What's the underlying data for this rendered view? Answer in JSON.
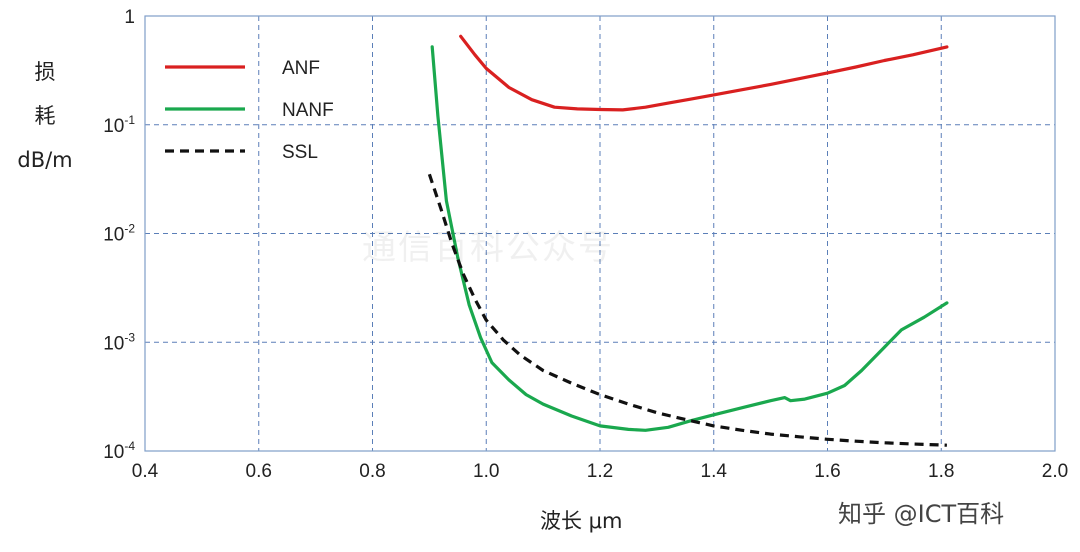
{
  "chart_data": {
    "type": "line",
    "xlabel": "波长 μm",
    "ylabel_lines": [
      "损",
      "耗",
      "dB/m"
    ],
    "xlim": [
      0.4,
      2.0
    ],
    "ylim": [
      0.0001,
      1
    ],
    "yscale": "log",
    "grid": true,
    "legend_position": "top-left",
    "x_ticks": [
      0.4,
      0.6,
      0.8,
      1.0,
      1.2,
      1.4,
      1.6,
      1.8,
      2.0
    ],
    "x_tick_labels": [
      "0.4",
      "0.6",
      "0.8",
      "1.0",
      "1.2",
      "1.4",
      "1.6",
      "1.8",
      "2.0"
    ],
    "y_ticks": [
      {
        "value": 1,
        "base": "1",
        "exp": ""
      },
      {
        "value": 0.1,
        "base": "10",
        "exp": "-1"
      },
      {
        "value": 0.01,
        "base": "10",
        "exp": "-2"
      },
      {
        "value": 0.001,
        "base": "10",
        "exp": "-3"
      },
      {
        "value": 0.0001,
        "base": "10",
        "exp": "-4"
      }
    ],
    "series": [
      {
        "name": "ANF",
        "color": "#d92020",
        "dash": "solid",
        "x": [
          0.955,
          0.98,
          1.0,
          1.04,
          1.08,
          1.12,
          1.16,
          1.2,
          1.24,
          1.28,
          1.32,
          1.36,
          1.4,
          1.45,
          1.5,
          1.55,
          1.6,
          1.65,
          1.7,
          1.75,
          1.81
        ],
        "y": [
          0.65,
          0.44,
          0.33,
          0.22,
          0.17,
          0.145,
          0.14,
          0.138,
          0.137,
          0.145,
          0.158,
          0.172,
          0.188,
          0.21,
          0.235,
          0.265,
          0.3,
          0.34,
          0.39,
          0.44,
          0.52
        ]
      },
      {
        "name": "NANF",
        "color": "#1aa84e",
        "dash": "solid",
        "x": [
          0.905,
          0.915,
          0.93,
          0.95,
          0.97,
          0.99,
          1.01,
          1.04,
          1.07,
          1.1,
          1.15,
          1.2,
          1.25,
          1.28,
          1.32,
          1.36,
          1.4,
          1.45,
          1.5,
          1.525,
          1.535,
          1.56,
          1.6,
          1.63,
          1.66,
          1.7,
          1.73,
          1.77,
          1.81
        ],
        "y": [
          0.52,
          0.12,
          0.02,
          0.006,
          0.0022,
          0.0011,
          0.00065,
          0.00045,
          0.00033,
          0.00027,
          0.00021,
          0.00017,
          0.000158,
          0.000155,
          0.000165,
          0.00019,
          0.000215,
          0.00025,
          0.00029,
          0.00031,
          0.00029,
          0.0003,
          0.00034,
          0.0004,
          0.00055,
          0.0009,
          0.0013,
          0.0017,
          0.0023
        ]
      },
      {
        "name": "SSL",
        "color": "#111111",
        "dash": "dashed",
        "x": [
          0.9,
          0.92,
          0.94,
          0.96,
          0.98,
          1.0,
          1.03,
          1.06,
          1.1,
          1.15,
          1.2,
          1.25,
          1.3,
          1.35,
          1.4,
          1.45,
          1.5,
          1.55,
          1.6,
          1.65,
          1.7,
          1.75,
          1.81
        ],
        "y": [
          0.035,
          0.017,
          0.008,
          0.0042,
          0.0025,
          0.0016,
          0.00105,
          0.00076,
          0.00055,
          0.00042,
          0.00033,
          0.00027,
          0.000225,
          0.000195,
          0.00017,
          0.000155,
          0.000143,
          0.000135,
          0.000128,
          0.000123,
          0.000119,
          0.000116,
          0.000113
        ]
      }
    ]
  },
  "watermark": "通信百科公众号",
  "brand": "知乎 @ICT百科"
}
